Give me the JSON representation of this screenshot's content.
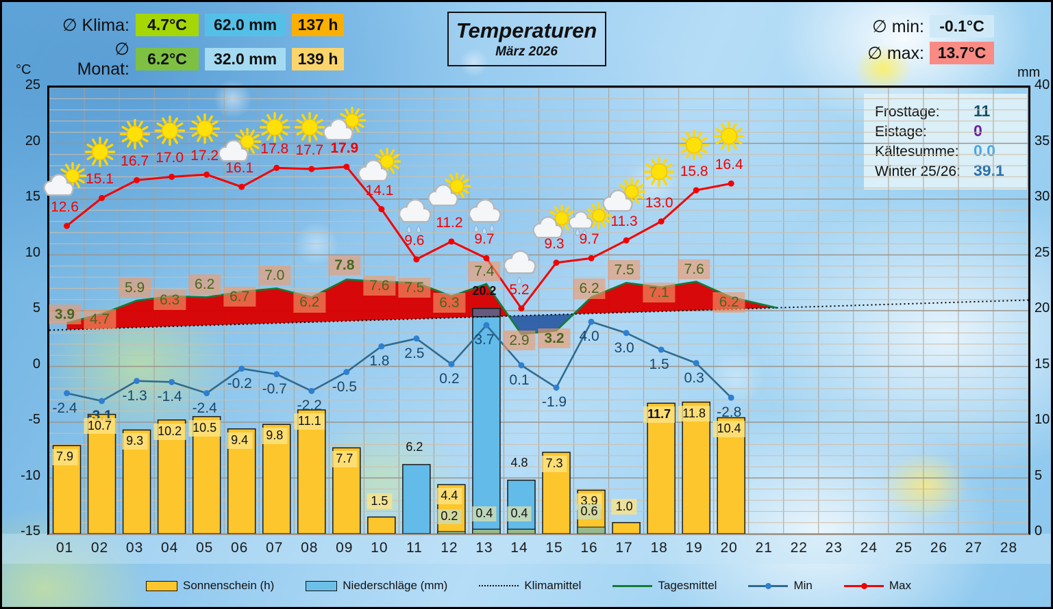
{
  "header": {
    "klima_label": "∅ Klima:",
    "monat_label": "∅ Monat:",
    "klima": {
      "temp": "4.7°C",
      "precip": "62.0 mm",
      "sun": "137 h"
    },
    "monat": {
      "temp": "6.2°C",
      "precip": "32.0 mm",
      "sun": "139 h"
    },
    "title": "Temperaturen",
    "subtitle": "März 2026",
    "min_label": "∅ min:",
    "min_value": "-0.1°C",
    "max_label": "∅ max:",
    "max_value": "13.7°C"
  },
  "infobox": {
    "rows": [
      {
        "label": "Frosttage:",
        "value": "11",
        "color": "#16506b"
      },
      {
        "label": "Eistage:",
        "value": "0",
        "color": "#6a1f9e"
      },
      {
        "label": "Kältesumme:",
        "value": "0.0",
        "color": "#4aa6e8"
      },
      {
        "label": "Winter 25/26:",
        "value": "39.1",
        "color": "#2c6fad"
      }
    ]
  },
  "axes": {
    "left_unit": "°C",
    "right_unit": "mm",
    "left_ticks": [
      25,
      20,
      15,
      10,
      5,
      0,
      -5,
      -10,
      -15
    ],
    "right_ticks": [
      40,
      35,
      30,
      25,
      20,
      15,
      10,
      5,
      0
    ],
    "x_ticks": [
      "01",
      "02",
      "03",
      "04",
      "05",
      "06",
      "07",
      "08",
      "09",
      "10",
      "11",
      "12",
      "13",
      "14",
      "15",
      "16",
      "17",
      "18",
      "19",
      "20",
      "21",
      "22",
      "23",
      "24",
      "25",
      "26",
      "27",
      "28"
    ]
  },
  "legend": {
    "items": [
      {
        "label": "Sonnenschein (h)",
        "swatch": "box",
        "color": "#fcc62c"
      },
      {
        "label": "Niederschläge (mm)",
        "swatch": "box",
        "color": "#6cc0e8"
      },
      {
        "label": "Klimamittel",
        "swatch": "dotted",
        "color": "#111111"
      },
      {
        "label": "Tagesmittel",
        "swatch": "line",
        "color": "#127c36"
      },
      {
        "label": "Min",
        "swatch": "line-dot",
        "color": "#2f6b8f",
        "dot": "#2f7fd0"
      },
      {
        "label": "Max",
        "swatch": "line-dot",
        "color": "#f20000",
        "dot": "#f20000"
      }
    ]
  },
  "chart_data": {
    "type": "combo",
    "title": "Temperaturen März 2026",
    "ylim_temp": [
      -15,
      25
    ],
    "ylim_mm": [
      0,
      40
    ],
    "x_range": [
      1,
      28
    ],
    "days_with_data": 20,
    "series": [
      {
        "name": "Max",
        "type": "line",
        "unit": "°C",
        "color": "#f20000",
        "values": [
          12.6,
          15.1,
          16.7,
          17.0,
          17.2,
          16.1,
          17.8,
          17.7,
          17.9,
          14.1,
          9.6,
          11.2,
          9.7,
          5.2,
          9.3,
          9.7,
          11.3,
          13.0,
          15.8,
          16.4
        ]
      },
      {
        "name": "Min",
        "type": "line",
        "unit": "°C",
        "color": "#2f6b8f",
        "values": [
          -2.4,
          -3.1,
          -1.3,
          -1.4,
          -2.4,
          -0.2,
          -0.7,
          -2.2,
          -0.5,
          1.8,
          2.5,
          0.2,
          3.7,
          0.1,
          -1.9,
          4.0,
          3.0,
          1.5,
          0.3,
          -2.8
        ]
      },
      {
        "name": "Tagesmittel",
        "type": "line",
        "unit": "°C",
        "color": "#127c36",
        "values": [
          3.9,
          4.7,
          5.9,
          6.3,
          6.2,
          6.7,
          7.0,
          6.2,
          7.8,
          7.6,
          7.5,
          6.3,
          7.4,
          2.9,
          3.2,
          6.2,
          7.5,
          7.1,
          7.6,
          6.2
        ]
      },
      {
        "name": "Sonnenschein (h)",
        "type": "bar",
        "unit": "h",
        "color": "#fcc62c",
        "values": [
          7.9,
          10.7,
          9.3,
          10.2,
          10.5,
          9.4,
          9.8,
          11.1,
          7.7,
          1.5,
          null,
          4.4,
          0.4,
          0.4,
          7.3,
          3.9,
          1.0,
          11.7,
          11.8,
          10.4
        ]
      },
      {
        "name": "Niederschläge (mm)",
        "type": "bar",
        "unit": "mm",
        "color": "#62bbe8",
        "values": [
          null,
          null,
          null,
          null,
          null,
          null,
          null,
          null,
          null,
          null,
          6.2,
          0.2,
          20.2,
          4.8,
          null,
          0.6,
          null,
          null,
          null,
          null
        ]
      }
    ],
    "klimamittel": {
      "name": "Klimamittel",
      "day1": 3.3,
      "day28": 5.9
    },
    "fill_above_color": "#da0000",
    "fill_below_color": "#2e5ea6",
    "bar_overlap_color": "#675a80",
    "bold_days": {
      "max": [
        9
      ],
      "min": [
        2
      ],
      "mean": [
        1,
        9,
        15
      ],
      "sun": [
        18
      ],
      "rain": [
        13
      ]
    },
    "mean_label_dy": [
      -8,
      12,
      -14,
      10,
      -14,
      12,
      -14,
      12,
      -16,
      10,
      12,
      14,
      -14,
      14,
      16,
      -8,
      -14,
      12,
      -14,
      12
    ],
    "icons": [
      {
        "day": 1,
        "type": "cloud-sun",
        "t": 16.2
      },
      {
        "day": 2,
        "type": "sun",
        "t": 19.0
      },
      {
        "day": 3,
        "type": "sun",
        "t": 20.6
      },
      {
        "day": 4,
        "type": "sun",
        "t": 20.9
      },
      {
        "day": 5,
        "type": "sun",
        "t": 21.1
      },
      {
        "day": 6,
        "type": "cloud-sun",
        "t": 19.3
      },
      {
        "day": 7,
        "type": "sun",
        "t": 21.2
      },
      {
        "day": 8,
        "type": "sun",
        "t": 21.2
      },
      {
        "day": 9,
        "type": "cloud-sun",
        "t": 21.2
      },
      {
        "day": 10,
        "type": "cloud-sun",
        "t": 17.5
      },
      {
        "day": 11,
        "type": "rain2",
        "t": 13.2
      },
      {
        "day": 12,
        "type": "cloud-sun",
        "t": 15.3
      },
      {
        "day": 13,
        "type": "rain3",
        "t": 13.2
      },
      {
        "day": 14,
        "type": "rain1",
        "t": 8.6
      },
      {
        "day": 15,
        "type": "cloud-sun",
        "t": 12.4
      },
      {
        "day": 16,
        "type": "rain-sun",
        "t": 12.8
      },
      {
        "day": 17,
        "type": "cloud-sun",
        "t": 14.8
      },
      {
        "day": 18,
        "type": "sun",
        "t": 17.2
      },
      {
        "day": 19,
        "type": "sun",
        "t": 19.6
      },
      {
        "day": 20,
        "type": "sun",
        "t": 20.4
      }
    ]
  },
  "colors": {
    "klima_temp": "#a5d606",
    "klima_mm": "#54c0e8",
    "klima_h": "#fbaf00",
    "monat_temp": "#7ec142",
    "monat_mm": "#a5dbf2",
    "monat_h": "#fbd56b",
    "min_pill": "#cfe9f7",
    "max_pill": "#f98b85"
  }
}
